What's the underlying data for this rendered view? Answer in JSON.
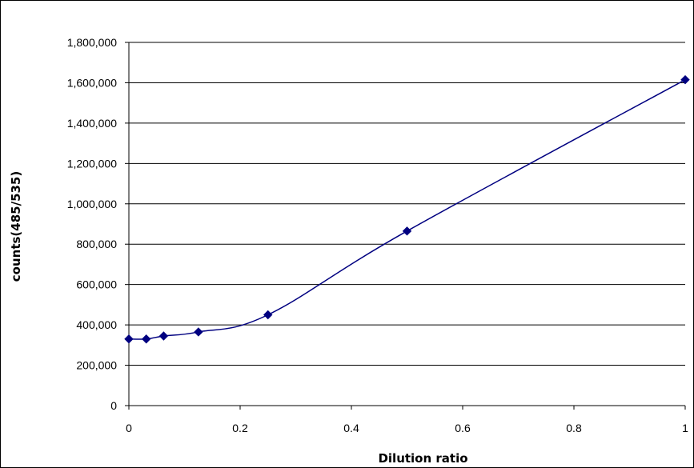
{
  "chart_data": {
    "type": "scatter",
    "title": "",
    "xlabel": "Dilution ratio",
    "ylabel": "counts(485/535)",
    "xlim": [
      0,
      1
    ],
    "ylim": [
      0,
      1800000
    ],
    "x_ticks": [
      "0",
      "0.2",
      "0.4",
      "0.6",
      "0.8",
      "1"
    ],
    "y_ticks": [
      "0",
      "200,000",
      "400,000",
      "600,000",
      "800,000",
      "1,000,000",
      "1,200,000",
      "1,400,000",
      "1,600,000",
      "1,800,000"
    ],
    "grid": "horizontal",
    "legend": "none",
    "line": "smoothed",
    "series": [
      {
        "x": [
          0,
          0.03125,
          0.0625,
          0.125,
          0.25,
          0.5,
          1
        ],
        "y": [
          330000,
          330000,
          345000,
          365000,
          450000,
          865000,
          1615000
        ],
        "color": "#000080",
        "marker": "diamond"
      }
    ]
  }
}
